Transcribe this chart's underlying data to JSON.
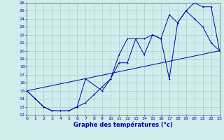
{
  "xlabel": "Graphe des températures (°c)",
  "bg_color": "#d0ecec",
  "grid_color": "#a8cccc",
  "line_color": "#0000aa",
  "xlim": [
    0,
    23
  ],
  "ylim": [
    12,
    26
  ],
  "yticks": [
    12,
    13,
    14,
    15,
    16,
    17,
    18,
    19,
    20,
    21,
    22,
    23,
    24,
    25,
    26
  ],
  "xticks": [
    0,
    1,
    2,
    3,
    4,
    5,
    6,
    7,
    8,
    9,
    10,
    11,
    12,
    13,
    14,
    15,
    16,
    17,
    18,
    19,
    20,
    21,
    22,
    23
  ],
  "line1_x": [
    0,
    1,
    2,
    3,
    4,
    5,
    6,
    7,
    9,
    10,
    11,
    12,
    13,
    14,
    15,
    16,
    17,
    18,
    19,
    20,
    21,
    22,
    23
  ],
  "line1_y": [
    15.0,
    14.0,
    13.0,
    12.5,
    12.5,
    12.5,
    13.0,
    16.5,
    15.0,
    16.5,
    19.5,
    21.5,
    21.5,
    21.5,
    22.0,
    21.5,
    24.5,
    23.5,
    25.0,
    26.0,
    25.5,
    25.5,
    20.0
  ],
  "line2_x": [
    0,
    1,
    2,
    3,
    4,
    5,
    6,
    7,
    8,
    9,
    10,
    11,
    12,
    13,
    14,
    15,
    16,
    17,
    18,
    19,
    20,
    21,
    22,
    23
  ],
  "line2_y": [
    15.0,
    14.0,
    13.0,
    12.5,
    12.5,
    12.5,
    13.0,
    13.5,
    14.5,
    15.5,
    16.5,
    18.5,
    18.5,
    21.5,
    19.5,
    22.0,
    21.5,
    16.5,
    23.5,
    25.0,
    24.0,
    23.0,
    21.0,
    20.0
  ],
  "line3_x": [
    0,
    23
  ],
  "line3_y": [
    15.0,
    20.0
  ]
}
